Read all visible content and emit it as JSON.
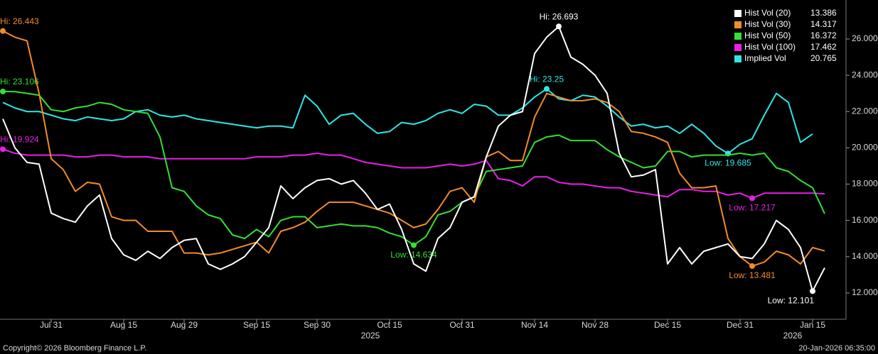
{
  "chart_data": {
    "type": "line",
    "categories": [
      null,
      null,
      null,
      null,
      "Jul 31",
      null,
      null,
      null,
      null,
      null,
      "Aug 15",
      null,
      null,
      null,
      null,
      "Aug 29",
      null,
      null,
      null,
      null,
      null,
      "Sep 15",
      null,
      null,
      null,
      null,
      "Sep 30",
      null,
      null,
      null,
      null,
      null,
      "Oct 15",
      null,
      null,
      null,
      null,
      null,
      "Oct 31",
      null,
      null,
      null,
      null,
      null,
      "Nov 14",
      null,
      null,
      null,
      null,
      "Nov 28",
      null,
      null,
      null,
      null,
      null,
      "Dec 15",
      null,
      null,
      null,
      null,
      null,
      "Dec 31",
      null,
      null,
      null,
      null,
      null,
      "Jan 15",
      null
    ],
    "year_labels": [
      "2025",
      "2026"
    ],
    "ylim": [
      10.55,
      28.15
    ],
    "yticks": [
      {
        "value": 12,
        "label": "12.000"
      },
      {
        "value": 14,
        "label": "14.000"
      },
      {
        "value": 16,
        "label": "16.000"
      },
      {
        "value": 18,
        "label": "18.000"
      },
      {
        "value": 20,
        "label": "20.000"
      },
      {
        "value": 22,
        "label": "22.000"
      },
      {
        "value": 24,
        "label": "24.000"
      },
      {
        "value": 26,
        "label": "26.000"
      }
    ],
    "legend": "top-right",
    "series": [
      {
        "name": "Hist Vol (20)",
        "color": "#ffffff",
        "hi_label": "Hi: 26.693",
        "low_label": "Low: 12.101",
        "values": [
          21.6,
          20.0,
          19.2,
          19.1,
          16.4,
          16.1,
          15.9,
          16.8,
          17.4,
          15.0,
          14.1,
          13.8,
          14.3,
          13.9,
          14.5,
          14.9,
          15.0,
          13.6,
          13.3,
          13.6,
          14.0,
          14.8,
          15.6,
          17.9,
          17.2,
          17.8,
          18.2,
          18.3,
          18.0,
          18.2,
          17.5,
          16.6,
          16.9,
          15.5,
          13.6,
          13.2,
          15.0,
          15.6,
          17.0,
          17.3,
          19.5,
          21.2,
          21.8,
          22.0,
          25.2,
          26.1,
          26.693,
          25.0,
          24.6,
          24.0,
          23.0,
          19.7,
          18.4,
          18.5,
          18.8,
          13.6,
          14.5,
          13.6,
          14.3,
          14.5,
          14.7,
          14.0,
          13.9,
          14.7,
          16.0,
          15.5,
          14.5,
          12.101,
          13.386
        ]
      },
      {
        "name": "Hist Vol (30)",
        "color": "#f28c28",
        "hi_label": "Hi: 26.443",
        "low_label": "Low: 13.481",
        "values": [
          26.443,
          26.1,
          25.9,
          23.0,
          19.4,
          18.8,
          17.6,
          18.1,
          18.0,
          16.2,
          16.0,
          16.0,
          15.4,
          15.4,
          15.4,
          14.2,
          14.2,
          14.1,
          14.2,
          14.4,
          14.6,
          14.8,
          14.2,
          15.4,
          15.6,
          15.9,
          16.5,
          17.0,
          17.0,
          17.0,
          16.8,
          16.6,
          16.4,
          16.0,
          15.6,
          15.8,
          16.6,
          17.6,
          17.8,
          17.0,
          19.5,
          19.8,
          19.3,
          19.3,
          21.7,
          23.0,
          22.8,
          22.6,
          22.6,
          22.7,
          22.5,
          22.0,
          20.9,
          20.8,
          20.6,
          20.3,
          18.6,
          17.8,
          17.8,
          17.9,
          15.0,
          14.0,
          13.481,
          13.7,
          14.3,
          14.1,
          13.6,
          14.5,
          14.317
        ]
      },
      {
        "name": "Hist Vol (50)",
        "color": "#33e033",
        "hi_label": "Hi: 23.106",
        "low_label": "Low: 14.634",
        "values": [
          23.106,
          23.1,
          23.0,
          22.9,
          22.1,
          22.0,
          22.2,
          22.3,
          22.5,
          22.4,
          22.1,
          22.0,
          21.9,
          20.6,
          17.8,
          17.6,
          16.8,
          16.3,
          16.1,
          15.2,
          15.0,
          15.5,
          15.1,
          16.0,
          16.2,
          16.2,
          15.6,
          15.7,
          15.8,
          15.7,
          15.7,
          15.6,
          15.3,
          15.1,
          14.634,
          15.1,
          16.3,
          16.5,
          17.0,
          17.3,
          18.7,
          18.8,
          18.9,
          19.0,
          20.3,
          20.6,
          20.7,
          20.4,
          20.4,
          20.4,
          19.9,
          19.5,
          19.2,
          18.9,
          19.0,
          19.8,
          19.8,
          19.5,
          19.6,
          19.6,
          19.6,
          19.7,
          19.6,
          19.7,
          18.9,
          18.7,
          18.2,
          17.8,
          16.372
        ]
      },
      {
        "name": "Hist Vol (100)",
        "color": "#e620e6",
        "hi_label": "Hi: 19.924",
        "low_label": "Low: 17.217",
        "values": [
          19.924,
          19.7,
          19.6,
          19.6,
          19.6,
          19.6,
          19.5,
          19.5,
          19.6,
          19.6,
          19.5,
          19.5,
          19.5,
          19.4,
          19.4,
          19.4,
          19.4,
          19.4,
          19.4,
          19.4,
          19.4,
          19.5,
          19.5,
          19.5,
          19.6,
          19.6,
          19.7,
          19.6,
          19.6,
          19.4,
          19.2,
          19.1,
          19.0,
          18.9,
          18.9,
          18.9,
          19.0,
          19.1,
          19.0,
          19.1,
          19.3,
          18.3,
          18.2,
          17.9,
          18.4,
          18.4,
          18.1,
          18.0,
          18.0,
          17.9,
          17.8,
          17.8,
          17.6,
          17.5,
          17.4,
          17.3,
          17.7,
          17.7,
          17.6,
          17.6,
          17.4,
          17.5,
          17.217,
          17.5,
          17.5,
          17.5,
          17.5,
          17.5,
          17.462
        ]
      },
      {
        "name": "Implied Vol",
        "color": "#2ee6e6",
        "hi_label": "Hi: 23.25",
        "low_label": "Low: 19.685",
        "values": [
          22.5,
          22.2,
          22.0,
          22.0,
          21.8,
          21.6,
          21.5,
          21.7,
          21.6,
          21.5,
          21.6,
          22.0,
          22.1,
          21.8,
          21.7,
          21.8,
          21.6,
          21.5,
          21.4,
          21.3,
          21.2,
          21.1,
          21.2,
          21.2,
          21.1,
          22.9,
          22.3,
          21.3,
          21.8,
          21.9,
          21.3,
          20.8,
          20.9,
          21.4,
          21.3,
          21.5,
          21.9,
          22.1,
          21.9,
          22.4,
          22.3,
          21.8,
          21.8,
          22.2,
          22.8,
          23.25,
          22.7,
          22.6,
          22.9,
          22.8,
          22.3,
          21.7,
          21.2,
          21.3,
          21.1,
          21.2,
          20.8,
          21.3,
          20.8,
          20.1,
          19.685,
          20.2,
          20.5,
          21.8,
          23.0,
          22.5,
          20.3,
          20.765,
          null
        ]
      }
    ]
  },
  "footer": {
    "left": "Copyright© 2026 Bloomberg Finance L.P.",
    "right": "20-Jan-2026 06:35:00"
  }
}
